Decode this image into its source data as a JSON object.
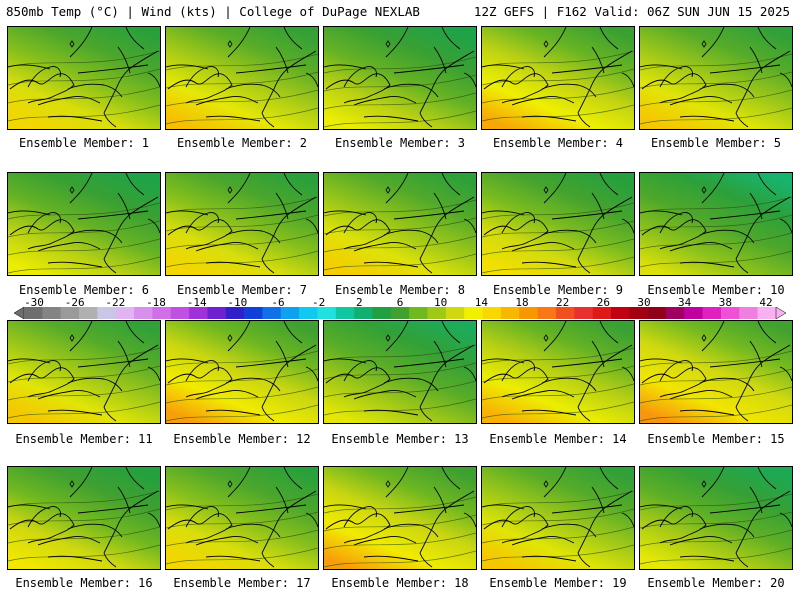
{
  "header": {
    "left": "850mb Temp (°C) | Wind (kts) | College of DuPage NEXLAB",
    "right": "12Z GEFS | F162 Valid: 06Z SUN JUN 15 2025"
  },
  "members": [
    {
      "label": "Ensemble Member: 1",
      "warmth": 0.55
    },
    {
      "label": "Ensemble Member: 2",
      "warmth": 0.62
    },
    {
      "label": "Ensemble Member: 3",
      "warmth": 0.45
    },
    {
      "label": "Ensemble Member: 4",
      "warmth": 0.68
    },
    {
      "label": "Ensemble Member: 5",
      "warmth": 0.6
    },
    {
      "label": "Ensemble Member: 6",
      "warmth": 0.45
    },
    {
      "label": "Ensemble Member: 7",
      "warmth": 0.55
    },
    {
      "label": "Ensemble Member: 8",
      "warmth": 0.58
    },
    {
      "label": "Ensemble Member: 9",
      "warmth": 0.52
    },
    {
      "label": "Ensemble Member: 10",
      "warmth": 0.35
    },
    {
      "label": "Ensemble Member: 11",
      "warmth": 0.6
    },
    {
      "label": "Ensemble Member: 12",
      "warmth": 0.7
    },
    {
      "label": "Ensemble Member: 13",
      "warmth": 0.4
    },
    {
      "label": "Ensemble Member: 14",
      "warmth": 0.66
    },
    {
      "label": "Ensemble Member: 15",
      "warmth": 0.72
    },
    {
      "label": "Ensemble Member: 16",
      "warmth": 0.5
    },
    {
      "label": "Ensemble Member: 17",
      "warmth": 0.55
    },
    {
      "label": "Ensemble Member: 18",
      "warmth": 0.7
    },
    {
      "label": "Ensemble Member: 19",
      "warmth": 0.6
    },
    {
      "label": "Ensemble Member: 20",
      "warmth": 0.42
    }
  ],
  "colorbar": {
    "ticks": [
      "-30",
      "-26",
      "-22",
      "-18",
      "-14",
      "-10",
      "-6",
      "-2",
      "2",
      "6",
      "10",
      "14",
      "18",
      "22",
      "26",
      "30",
      "34",
      "38",
      "42"
    ],
    "colors": [
      "#6e6e6e",
      "#848484",
      "#9a9a9a",
      "#b0b0b0",
      "#c8c8e6",
      "#e0b4f0",
      "#d890ee",
      "#d26ee8",
      "#c050e0",
      "#a030d8",
      "#7020d0",
      "#3020c8",
      "#1040d8",
      "#1070e8",
      "#10a0f0",
      "#10c8f0",
      "#20e0e0",
      "#10c8a0",
      "#10b070",
      "#20a040",
      "#40a030",
      "#70b820",
      "#a0c818",
      "#d0d810",
      "#f0f000",
      "#f8d800",
      "#f8b800",
      "#f89800",
      "#f87818",
      "#f05020",
      "#e83030",
      "#e01818",
      "#c00010",
      "#a00010",
      "#900018",
      "#a00060",
      "#c000a0",
      "#e020c0",
      "#f050d8",
      "#f080e0",
      "#f8b0f0"
    ]
  }
}
